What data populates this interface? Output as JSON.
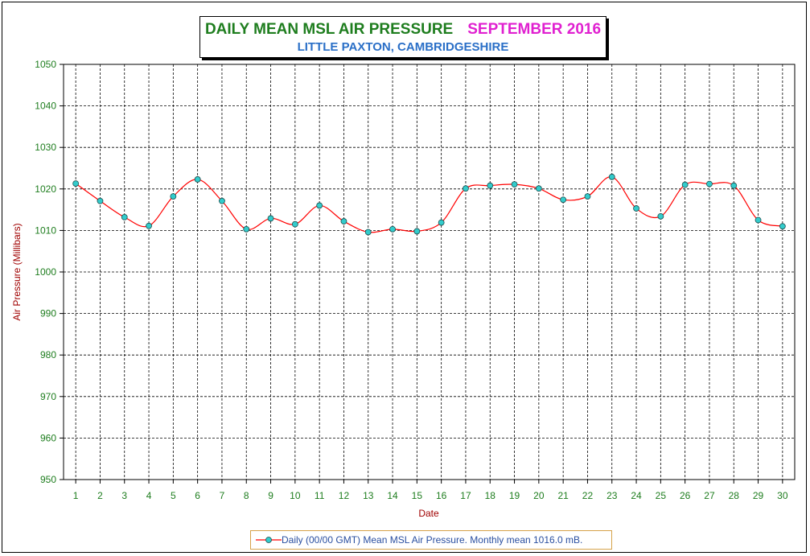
{
  "chart_data": {
    "type": "line",
    "title": "DAILY MEAN MSL AIR PRESSURE",
    "title_period": "SEPTEMBER 2016",
    "subtitle": "LITTLE PAXTON, CAMBRIDGESHIRE",
    "xlabel": "Date",
    "ylabel": "Air Pressure (Millibars)",
    "ylim": [
      950,
      1050
    ],
    "yticks": [
      950,
      960,
      970,
      980,
      990,
      1000,
      1010,
      1020,
      1030,
      1040,
      1050
    ],
    "x": [
      1,
      2,
      3,
      4,
      5,
      6,
      7,
      8,
      9,
      10,
      11,
      12,
      13,
      14,
      15,
      16,
      17,
      18,
      19,
      20,
      21,
      22,
      23,
      24,
      25,
      26,
      27,
      28,
      29,
      30
    ],
    "series": [
      {
        "name": "Daily (00/00 GMT) Mean MSL Air Pressure. Monthly mean 1016.0 mB.",
        "values": [
          1021.3,
          1017.1,
          1013.2,
          1011.1,
          1018.2,
          1022.3,
          1017.1,
          1010.3,
          1012.9,
          1011.5,
          1016.0,
          1012.2,
          1009.6,
          1010.3,
          1009.8,
          1011.9,
          1020.1,
          1020.8,
          1021.1,
          1020.1,
          1017.4,
          1018.2,
          1022.9,
          1015.3,
          1013.4,
          1021.0,
          1021.2,
          1020.8,
          1012.5,
          1011.0
        ],
        "line_color": "#ff0000",
        "marker_color": "#33cccc"
      }
    ],
    "grid": true,
    "legend_position": "bottom-center",
    "axis_text_color": "#1e7d1e",
    "axis_label_color": "#a00000"
  }
}
